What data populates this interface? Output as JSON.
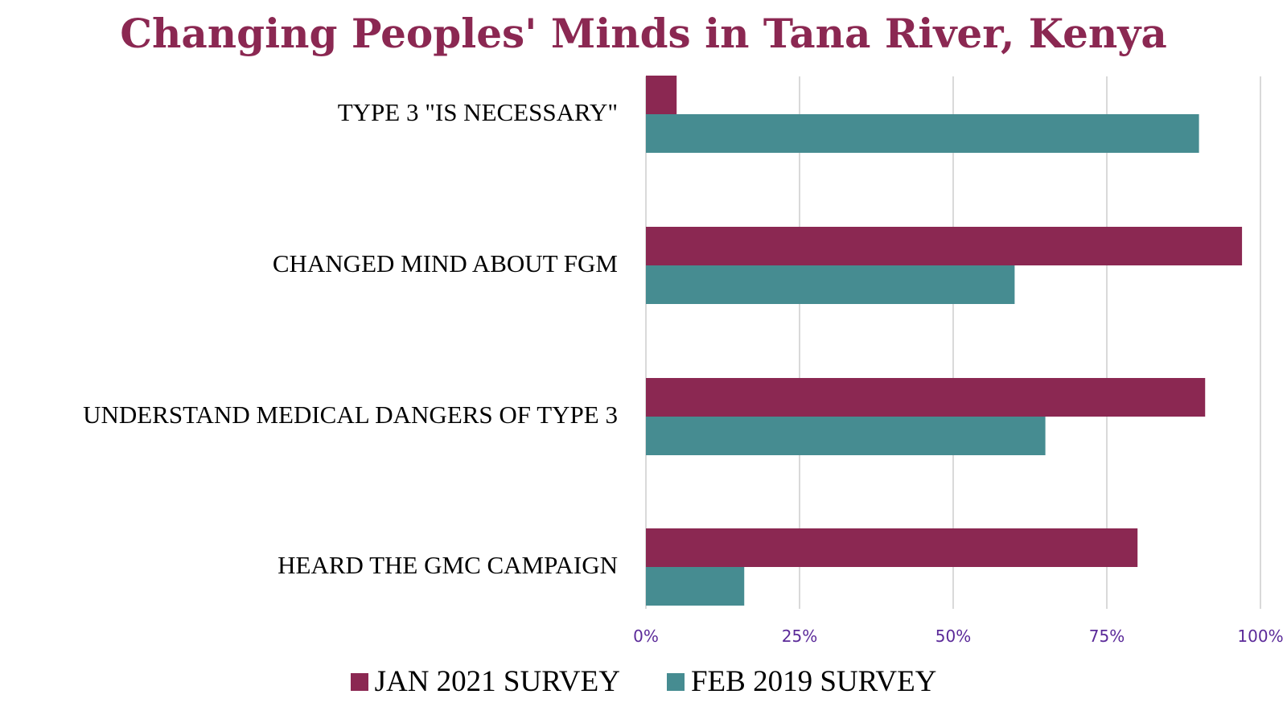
{
  "chart_data": {
    "type": "bar",
    "orientation": "horizontal",
    "title": "Changing Peoples' Minds in Tana River, Kenya",
    "title_color": "#8B2852",
    "categories": [
      "TYPE 3 \"IS NECESSARY\"",
      "CHANGED MIND ABOUT FGM",
      "UNDERSTAND MEDICAL DANGERS OF TYPE 3",
      "HEARD THE GMC CAMPAIGN"
    ],
    "series": [
      {
        "name": "JAN 2021 SURVEY",
        "color": "#8B2852",
        "values": [
          5,
          97,
          91,
          80
        ]
      },
      {
        "name": "FEB 2019 SURVEY",
        "color": "#468C91",
        "values": [
          90,
          60,
          65,
          16
        ]
      }
    ],
    "xlim": [
      0,
      100
    ],
    "xticks": [
      "0%",
      "25%",
      "50%",
      "75%",
      "100%"
    ],
    "tick_color": "#5B2A99",
    "grid": true,
    "legend_position": "bottom"
  }
}
